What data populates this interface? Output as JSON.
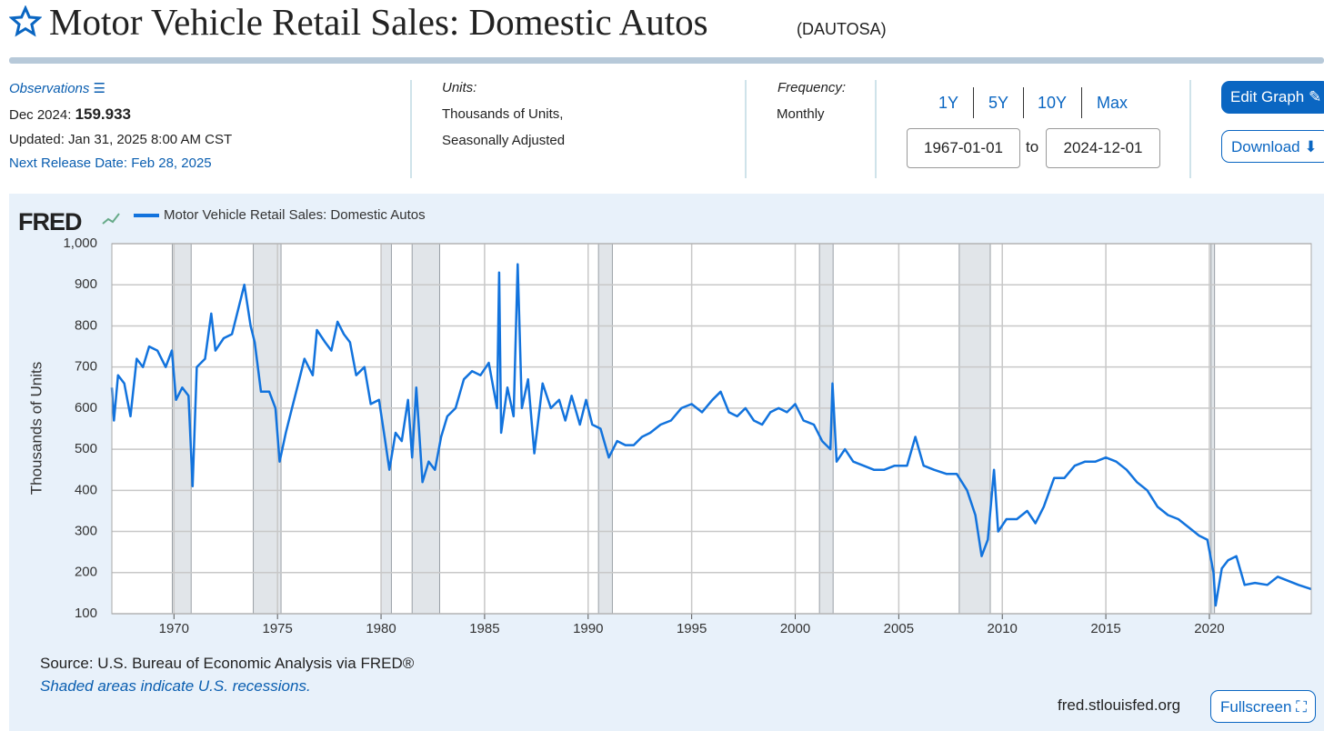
{
  "header": {
    "title": "Motor Vehicle Retail Sales: Domestic Autos",
    "series_id": "(DAUTOSA)"
  },
  "info": {
    "observations": "Observations",
    "latest_date": "Dec 2024:",
    "latest_value": "159.933",
    "updated": "Updated: Jan 31, 2025 8:00 AM CST",
    "next_release": "Next Release Date: Feb 28, 2025",
    "units_label": "Units:",
    "units_1": "Thousands of Units,",
    "units_2": "Seasonally Adjusted",
    "frequency_label": "Frequency:",
    "frequency": "Monthly"
  },
  "controls": {
    "ranges": [
      "1Y",
      "5Y",
      "10Y",
      "Max"
    ],
    "start": "1967-01-01",
    "to": "to",
    "end": "2024-12-01",
    "edit": "Edit Graph",
    "download": "Download",
    "fullscreen": "Fullscreen"
  },
  "footer": {
    "source": "Source: U.S. Bureau of Economic Analysis via FRED®",
    "note": "Shaded areas indicate U.S. recessions.",
    "site": "fred.stlouisfed.org"
  },
  "chart_data": {
    "type": "line",
    "logo": "FRED",
    "ylabel": "Thousands of Units",
    "xlim": [
      1967.0,
      2024.92
    ],
    "xticks": [
      1970,
      1975,
      1980,
      1985,
      1990,
      1995,
      2000,
      2005,
      2010,
      2015,
      2020
    ],
    "ylim": [
      100,
      1000
    ],
    "yticks": [
      100,
      200,
      300,
      400,
      500,
      600,
      700,
      800,
      900,
      {
        "value": 1000,
        "label": "1,000"
      }
    ],
    "grid": true,
    "recessions": [
      [
        1969.92,
        1970.83
      ],
      [
        1973.83,
        1975.17
      ],
      [
        1980.0,
        1980.5
      ],
      [
        1981.5,
        1982.83
      ],
      [
        1990.5,
        1991.17
      ],
      [
        2001.17,
        2001.83
      ],
      [
        2007.92,
        2009.42
      ],
      [
        2020.08,
        2020.25
      ]
    ],
    "recession_color": "#e1e5e9",
    "series": [
      {
        "name": "Motor Vehicle Retail Sales: Domestic Autos",
        "color": "#1273dd",
        "x": [
          1967.0,
          1967.1,
          1967.3,
          1967.6,
          1967.9,
          1968.2,
          1968.5,
          1968.8,
          1969.2,
          1969.6,
          1969.9,
          1970.1,
          1970.4,
          1970.7,
          1970.9,
          1971.1,
          1971.5,
          1971.8,
          1972.0,
          1972.4,
          1972.8,
          1973.1,
          1973.4,
          1973.7,
          1973.9,
          1974.2,
          1974.6,
          1974.9,
          1975.1,
          1975.4,
          1975.7,
          1976.0,
          1976.3,
          1976.7,
          1976.9,
          1977.3,
          1977.6,
          1977.9,
          1978.2,
          1978.5,
          1978.8,
          1979.2,
          1979.5,
          1979.9,
          1980.2,
          1980.4,
          1980.7,
          1981.0,
          1981.3,
          1981.5,
          1981.7,
          1982.0,
          1982.3,
          1982.6,
          1982.9,
          1983.2,
          1983.6,
          1984.0,
          1984.4,
          1984.8,
          1985.2,
          1985.6,
          1985.7,
          1985.8,
          1986.1,
          1986.4,
          1986.6,
          1986.8,
          1987.1,
          1987.4,
          1987.8,
          1988.2,
          1988.6,
          1988.9,
          1989.2,
          1989.6,
          1989.9,
          1990.2,
          1990.6,
          1991.0,
          1991.4,
          1991.8,
          1992.2,
          1992.6,
          1993.0,
          1993.5,
          1994.0,
          1994.5,
          1995.0,
          1995.5,
          1996.0,
          1996.4,
          1996.8,
          1997.2,
          1997.6,
          1998.0,
          1998.4,
          1998.8,
          1999.2,
          1999.6,
          2000.0,
          2000.4,
          2000.9,
          2001.3,
          2001.7,
          2001.8,
          2002.0,
          2002.4,
          2002.8,
          2003.3,
          2003.8,
          2004.3,
          2004.8,
          2005.4,
          2005.8,
          2006.2,
          2006.7,
          2007.3,
          2007.8,
          2008.3,
          2008.7,
          2009.0,
          2009.3,
          2009.6,
          2009.8,
          2010.2,
          2010.7,
          2011.2,
          2011.6,
          2012.0,
          2012.5,
          2013.0,
          2013.5,
          2014.0,
          2014.5,
          2015.0,
          2015.5,
          2016.0,
          2016.5,
          2017.0,
          2017.5,
          2018.0,
          2018.5,
          2019.0,
          2019.5,
          2019.9,
          2020.2,
          2020.3,
          2020.6,
          2020.9,
          2021.3,
          2021.7,
          2022.2,
          2022.8,
          2023.3,
          2023.8,
          2024.3,
          2024.92
        ],
        "values": [
          650,
          570,
          680,
          660,
          580,
          720,
          700,
          750,
          740,
          700,
          740,
          620,
          650,
          630,
          410,
          700,
          720,
          830,
          740,
          770,
          780,
          840,
          900,
          800,
          760,
          640,
          640,
          600,
          470,
          540,
          600,
          660,
          720,
          680,
          790,
          760,
          740,
          810,
          780,
          760,
          680,
          700,
          610,
          620,
          520,
          450,
          540,
          520,
          620,
          480,
          650,
          420,
          470,
          450,
          530,
          580,
          600,
          670,
          690,
          680,
          710,
          600,
          930,
          540,
          650,
          580,
          950,
          600,
          670,
          490,
          660,
          600,
          620,
          570,
          630,
          560,
          620,
          560,
          550,
          480,
          520,
          510,
          510,
          530,
          540,
          560,
          570,
          600,
          610,
          590,
          620,
          640,
          590,
          580,
          600,
          570,
          560,
          590,
          600,
          590,
          610,
          570,
          560,
          520,
          500,
          660,
          470,
          500,
          470,
          460,
          450,
          450,
          460,
          460,
          530,
          460,
          450,
          440,
          440,
          400,
          340,
          240,
          280,
          450,
          300,
          330,
          330,
          350,
          320,
          360,
          430,
          430,
          460,
          470,
          470,
          480,
          470,
          450,
          420,
          400,
          360,
          340,
          330,
          310,
          290,
          280,
          200,
          120,
          210,
          230,
          240,
          170,
          175,
          170,
          190,
          180,
          170,
          159.933
        ]
      }
    ]
  }
}
